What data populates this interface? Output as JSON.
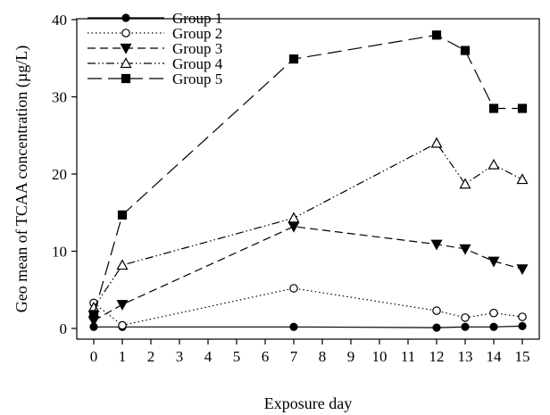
{
  "chart_data": {
    "type": "line",
    "title": "",
    "xlabel": "Exposure day",
    "ylabel": "Geo mean of TCAA concentration (µg/L)",
    "xlim": [
      0,
      15
    ],
    "ylim": [
      0,
      40
    ],
    "xticks": [
      0,
      1,
      2,
      3,
      4,
      5,
      6,
      7,
      8,
      9,
      10,
      11,
      12,
      13,
      14,
      15
    ],
    "yticks": [
      0,
      10,
      20,
      30,
      40
    ],
    "x": [
      0,
      1,
      7,
      12,
      13,
      14,
      15
    ],
    "grid": false,
    "legend_position": "top-left",
    "series": [
      {
        "name": "Group 1",
        "marker": "filled-circle",
        "line": "solid",
        "color": "#000000",
        "values": [
          0.2,
          0.2,
          0.2,
          0.1,
          0.2,
          0.2,
          0.3
        ]
      },
      {
        "name": "Group 2",
        "marker": "open-circle",
        "line": "dotted",
        "color": "#000000",
        "values": [
          3.3,
          0.4,
          5.2,
          2.3,
          1.4,
          2.0,
          1.5
        ]
      },
      {
        "name": "Group 3",
        "marker": "filled-triangle-down",
        "line": "dashed",
        "color": "#000000",
        "values": [
          1.0,
          3.1,
          13.2,
          10.9,
          10.3,
          8.7,
          7.7
        ]
      },
      {
        "name": "Group 4",
        "marker": "open-triangle-up",
        "line": "dash-dot-dot",
        "color": "#000000",
        "values": [
          2.7,
          8.2,
          14.3,
          24.0,
          18.7,
          21.2,
          19.3
        ]
      },
      {
        "name": "Group 5",
        "marker": "filled-square",
        "line": "long-dash",
        "color": "#000000",
        "values": [
          1.8,
          14.7,
          34.9,
          38.0,
          36.0,
          28.5,
          28.5
        ]
      }
    ]
  }
}
